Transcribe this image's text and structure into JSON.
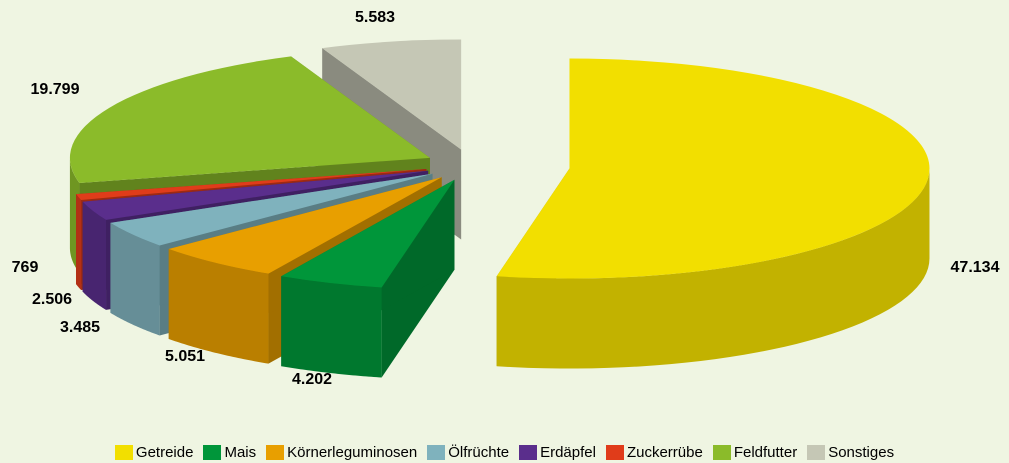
{
  "chart_data": {
    "type": "pie3d",
    "categories": [
      "Getreide",
      "Mais",
      "Körnerleguminosen",
      "Ölfrüchte",
      "Erdäpfel",
      "Zuckerrübe",
      "Feldfutter",
      "Sonstiges"
    ],
    "values": [
      47134,
      4202,
      5051,
      3485,
      2506,
      769,
      19799,
      5583
    ],
    "value_labels": [
      "47.134",
      "4.202",
      "5.051",
      "3.485",
      "2.506",
      "769",
      "19.799",
      "5.583"
    ],
    "colors": [
      "#f2df00",
      "#00963a",
      "#e89f00",
      "#7fb2bd",
      "#5a2e8c",
      "#e03c1a",
      "#8bbb2a",
      "#c5c7b5"
    ],
    "legend": "bottom"
  }
}
